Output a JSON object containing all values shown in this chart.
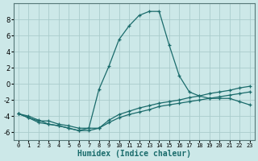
{
  "xlabel": "Humidex (Indice chaleur)",
  "background_color": "#cce8e8",
  "grid_color": "#aacccc",
  "line_color": "#1a6b6b",
  "xlim": [
    -0.5,
    23.5
  ],
  "ylim": [
    -7,
    10
  ],
  "yticks": [
    -6,
    -4,
    -2,
    0,
    2,
    4,
    6,
    8
  ],
  "xticks": [
    0,
    1,
    2,
    3,
    4,
    5,
    6,
    7,
    8,
    9,
    10,
    11,
    12,
    13,
    14,
    15,
    16,
    17,
    18,
    19,
    20,
    21,
    22,
    23
  ],
  "series": [
    {
      "x": [
        0,
        1,
        2,
        3,
        4,
        5,
        6,
        7,
        8,
        9,
        10,
        11,
        12,
        13,
        14,
        15,
        16,
        17,
        18,
        19,
        20,
        21,
        22,
        23
      ],
      "y": [
        -3.7,
        -4.2,
        -4.6,
        -4.6,
        -5.0,
        -5.2,
        -5.5,
        -5.5,
        -0.7,
        2.2,
        5.5,
        7.2,
        8.5,
        9.0,
        9.0,
        4.8,
        1.0,
        -1.0,
        -1.5,
        -1.8,
        -1.8,
        -1.8,
        -2.2,
        -2.6
      ]
    },
    {
      "x": [
        0,
        1,
        2,
        3,
        4,
        5,
        6,
        7,
        8,
        9,
        10,
        11,
        12,
        13,
        14,
        15,
        16,
        17,
        18,
        19,
        20,
        21,
        22,
        23
      ],
      "y": [
        -3.7,
        -4.2,
        -4.8,
        -5.0,
        -5.2,
        -5.5,
        -5.8,
        -5.8,
        -5.5,
        -4.8,
        -4.2,
        -3.8,
        -3.5,
        -3.2,
        -2.8,
        -2.6,
        -2.4,
        -2.2,
        -2.0,
        -1.8,
        -1.6,
        -1.4,
        -1.2,
        -1.0
      ]
    },
    {
      "x": [
        0,
        1,
        2,
        3,
        4,
        5,
        6,
        7,
        8,
        9,
        10,
        11,
        12,
        13,
        14,
        15,
        16,
        17,
        18,
        19,
        20,
        21,
        22,
        23
      ],
      "y": [
        -3.7,
        -4.0,
        -4.5,
        -5.0,
        -5.2,
        -5.5,
        -5.8,
        -5.5,
        -5.5,
        -4.5,
        -3.8,
        -3.4,
        -3.0,
        -2.7,
        -2.4,
        -2.2,
        -2.0,
        -1.7,
        -1.5,
        -1.2,
        -1.0,
        -0.8,
        -0.5,
        -0.3
      ]
    }
  ]
}
